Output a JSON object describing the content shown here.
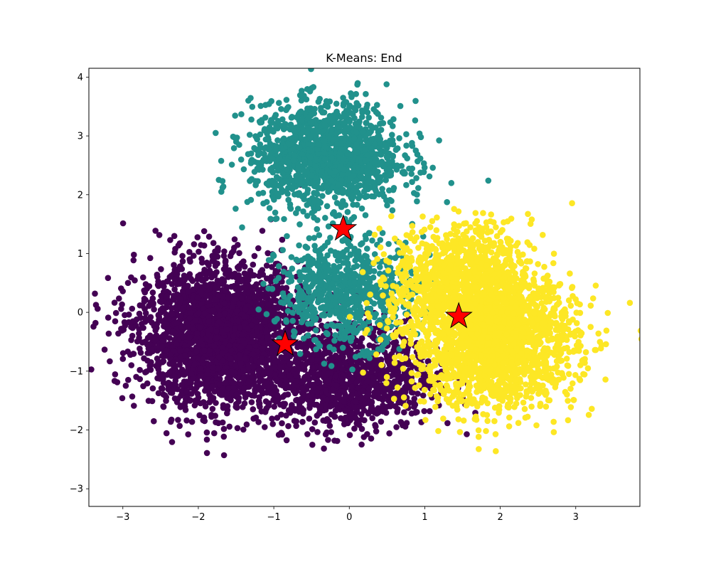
{
  "chart_data": {
    "type": "scatter",
    "title": "K-Means: End",
    "xlabel": "",
    "ylabel": "",
    "xlim": [
      -3.45,
      3.85
    ],
    "ylim": [
      -3.3,
      4.15
    ],
    "grid": false,
    "x_ticks": [
      -3,
      -2,
      -1,
      0,
      1,
      2,
      3
    ],
    "y_ticks": [
      -3,
      -2,
      -1,
      0,
      1,
      2,
      3,
      4
    ],
    "x_tick_labels": [
      "−3",
      "−2",
      "−1",
      "0",
      "1",
      "2",
      "3"
    ],
    "y_tick_labels": [
      "−3",
      "−2",
      "−1",
      "0",
      "1",
      "2",
      "3",
      "4"
    ],
    "colors": {
      "cluster_purple": "#440154",
      "cluster_teal": "#21918c",
      "cluster_yellow": "#fde725",
      "centroid_fill": "#ff0000",
      "centroid_edge": "#000000"
    },
    "cluster_blobs": [
      {
        "cluster": "purple",
        "center": [
          -1.7,
          -0.4
        ],
        "spread": [
          0.55,
          0.6
        ],
        "count": 2600
      },
      {
        "cluster": "purple",
        "center": [
          0.0,
          -1.1
        ],
        "spread": [
          0.55,
          0.45
        ],
        "count": 1100
      },
      {
        "cluster": "teal",
        "center": [
          -0.3,
          2.65
        ],
        "spread": [
          0.5,
          0.45
        ],
        "count": 1400
      },
      {
        "cluster": "teal",
        "center": [
          -0.05,
          0.35
        ],
        "spread": [
          0.45,
          0.45
        ],
        "count": 700
      },
      {
        "cluster": "yellow",
        "center": [
          1.9,
          -0.5
        ],
        "spread": [
          0.55,
          0.55
        ],
        "count": 2000
      },
      {
        "cluster": "yellow",
        "center": [
          1.5,
          0.6
        ],
        "spread": [
          0.45,
          0.45
        ],
        "count": 900
      }
    ],
    "centroids": [
      {
        "name": "centroid-1",
        "x": -0.85,
        "y": -0.54
      },
      {
        "name": "centroid-2",
        "x": -0.08,
        "y": 1.42
      },
      {
        "name": "centroid-3",
        "x": 1.45,
        "y": -0.07
      }
    ]
  }
}
